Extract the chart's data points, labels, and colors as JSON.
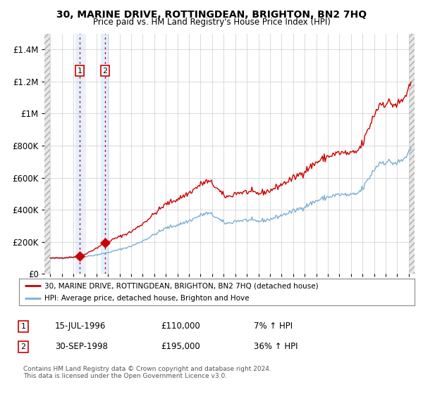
{
  "title": "30, MARINE DRIVE, ROTTINGDEAN, BRIGHTON, BN2 7HQ",
  "subtitle": "Price paid vs. HM Land Registry's House Price Index (HPI)",
  "legend_line1": "30, MARINE DRIVE, ROTTINGDEAN, BRIGHTON, BN2 7HQ (detached house)",
  "legend_line2": "HPI: Average price, detached house, Brighton and Hove",
  "transaction1_date": "15-JUL-1996",
  "transaction1_price": 110000,
  "transaction1_label": "1",
  "transaction1_hpi_text": "7% ↑ HPI",
  "transaction1_year": 1996.54,
  "transaction2_date": "30-SEP-1998",
  "transaction2_price": 195000,
  "transaction2_label": "2",
  "transaction2_hpi_text": "36% ↑ HPI",
  "transaction2_year": 1998.75,
  "footer": "Contains HM Land Registry data © Crown copyright and database right 2024.\nThis data is licensed under the Open Government Licence v3.0.",
  "xmin": 1993.5,
  "xmax": 2025.5,
  "ymin": 0,
  "ymax": 1500000,
  "yticks": [
    0,
    200000,
    400000,
    600000,
    800000,
    1000000,
    1200000,
    1400000
  ],
  "ytick_labels": [
    "£0",
    "£200K",
    "£400K",
    "£600K",
    "£800K",
    "£1M",
    "£1.2M",
    "£1.4M"
  ],
  "red_color": "#cc0000",
  "blue_color": "#7bafd4",
  "bg_color": "#ffffff",
  "grid_color": "#cccccc",
  "shade_color": "#ddeeff",
  "hatch_face": "#e8e8e8",
  "hatch_edge": "#aaaaaa"
}
